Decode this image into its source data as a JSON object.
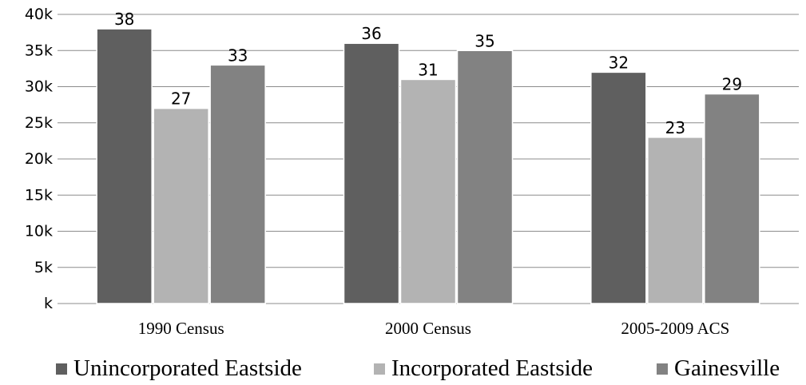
{
  "chart_data": {
    "type": "bar",
    "categories": [
      "1990 Census",
      "2000 Census",
      "2005-2009 ACS"
    ],
    "series": [
      {
        "name": "Unincorporated Eastside",
        "values": [
          38,
          36,
          32
        ],
        "color": "#5f5f5f"
      },
      {
        "name": "Incorporated Eastside",
        "values": [
          27,
          31,
          23
        ],
        "color": "#b3b3b3"
      },
      {
        "name": "Gainesville",
        "values": [
          33,
          35,
          29
        ],
        "color": "#828282"
      }
    ],
    "yticks": [
      "k",
      "5k",
      "10k",
      "15k",
      "20k",
      "25k",
      "30k",
      "35k",
      "40k"
    ],
    "ylim": [
      0,
      40
    ],
    "grid": true,
    "legend_position": "bottom",
    "title": "",
    "xlabel": "",
    "ylabel": ""
  }
}
